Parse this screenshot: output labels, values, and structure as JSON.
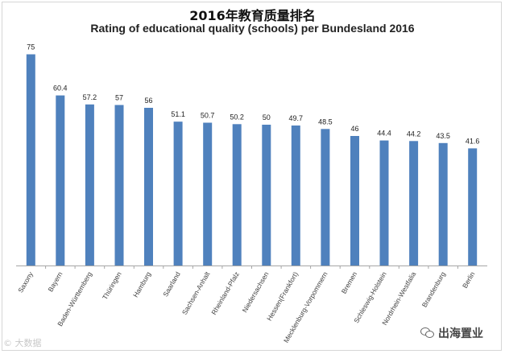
{
  "title_zh": "2016年教育质量排名",
  "title_en": "Rating of educational quality (schools) per Bundesland 2016",
  "watermark_left": "© 大数据",
  "watermark_right": "出海置业",
  "colors": {
    "bar": "#4f81bd",
    "axis": "#a6a6a6",
    "text": "#222222"
  },
  "chart_data": {
    "type": "bar",
    "title": "Rating of educational quality (schools) per Bundesland 2016",
    "xlabel": "",
    "ylabel": "",
    "ylim": [
      0,
      80
    ],
    "grid": false,
    "legend": "none",
    "categories": [
      "Saxony",
      "Bayern",
      "Baden-Württemberg",
      "Thüringen",
      "Hamburg",
      "Saarland",
      "Sachsen-Anhalt",
      "Rheinland-Pfalz",
      "Niedersachsen",
      "Hessen(Frankfort)",
      "Mecklenburg-Vorpommern",
      "Bremen",
      "Schleswig-Holstein",
      "Nordrhein-Westfalia",
      "Brandenburg",
      "Berlin"
    ],
    "values": [
      75,
      60.4,
      57.2,
      57,
      56,
      51.1,
      50.7,
      50.2,
      50,
      49.7,
      48.5,
      46,
      44.4,
      44.2,
      43.5,
      41.6
    ],
    "value_labels": [
      "75",
      "60.4",
      "57.2",
      "57",
      "56",
      "51.1",
      "50.7",
      "50.2",
      "50",
      "49.7",
      "48.5",
      "46",
      "44.4",
      "44.2",
      "43.5",
      "41.6"
    ]
  }
}
